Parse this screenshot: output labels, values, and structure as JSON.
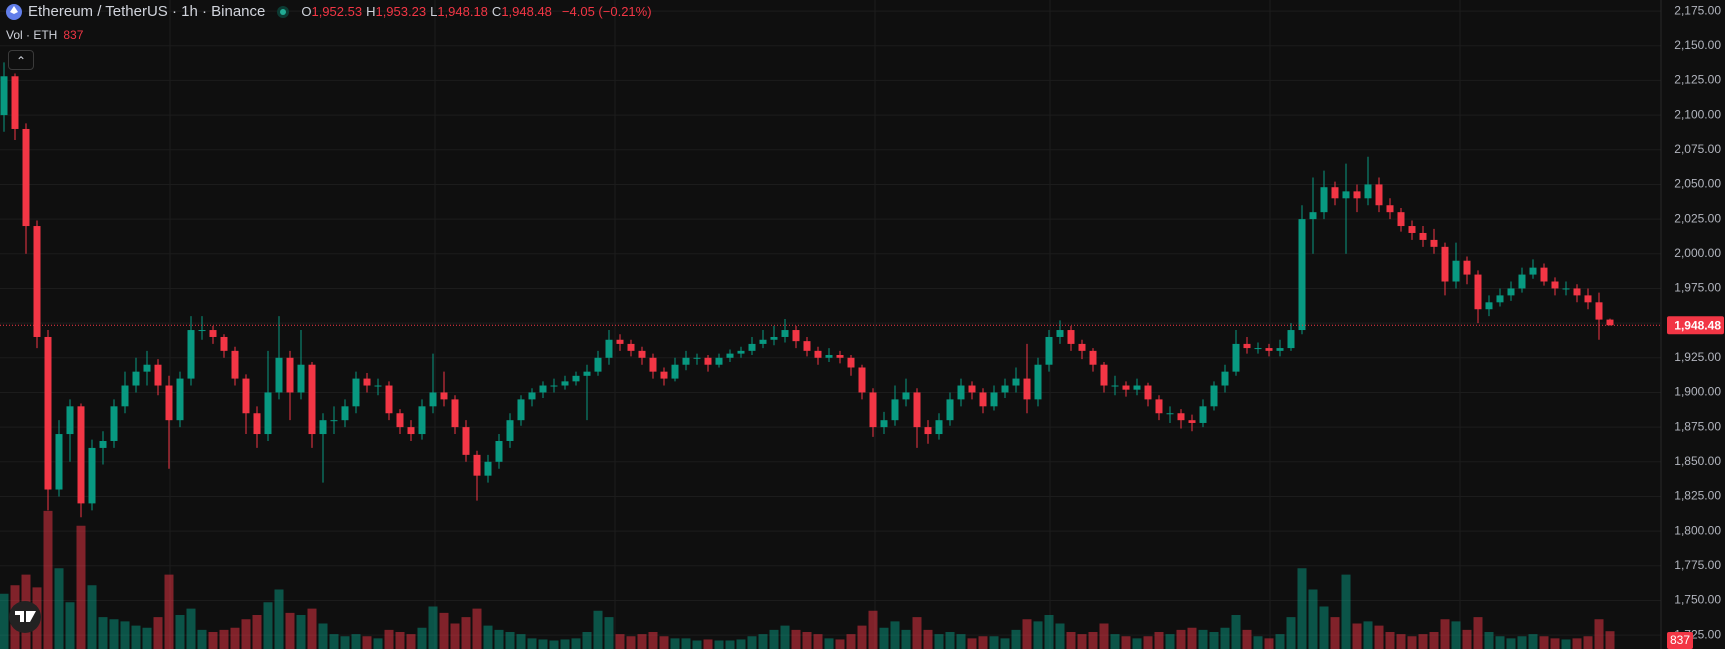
{
  "chart_data": {
    "type": "candlestick",
    "header": {
      "symbol": "Ethereum / TetherUS · 1h · Binance",
      "ohlc": [
        {
          "key": "O",
          "value": "1,952.53"
        },
        {
          "key": "H",
          "value": "1,953.23"
        },
        {
          "key": "L",
          "value": "1,948.18"
        },
        {
          "key": "C",
          "value": "1,948.48"
        }
      ],
      "change": "−4.05 (−0.21%)",
      "volume_title": "Vol · ETH"
    },
    "up_color": "#089981",
    "down_color": "#f23645",
    "ylim": [
      1715,
      2183
    ],
    "yticks": [
      {
        "value": 1725,
        "label": "1,725.00"
      },
      {
        "value": 1750,
        "label": "1,750.00"
      },
      {
        "value": 1775,
        "label": "1,775.00"
      },
      {
        "value": 1800,
        "label": "1,800.00"
      },
      {
        "value": 1825,
        "label": "1,825.00"
      },
      {
        "value": 1850,
        "label": "1,850.00"
      },
      {
        "value": 1875,
        "label": "1,875.00"
      },
      {
        "value": 1900,
        "label": "1,900.00"
      },
      {
        "value": 1925,
        "label": "1,925.00"
      },
      {
        "value": 1950,
        "label": "1,950.00"
      },
      {
        "value": 1975,
        "label": "1,975.00"
      },
      {
        "value": 2000,
        "label": "2,000.00"
      },
      {
        "value": 2025,
        "label": "2,025.00"
      },
      {
        "value": 2050,
        "label": "2,050.00"
      },
      {
        "value": 2075,
        "label": "2,075.00"
      },
      {
        "value": 2100,
        "label": "2,100.00"
      },
      {
        "value": 2125,
        "label": "2,125.00"
      },
      {
        "value": 2150,
        "label": "2,150.00"
      },
      {
        "value": 2175,
        "label": "2,175.00"
      }
    ],
    "grid": true,
    "volume_ylim": [
      0,
      8000
    ],
    "last_price": {
      "value": 1948.48,
      "label": "1,948.48"
    },
    "candles": [
      [
        2100,
        2138,
        2088,
        2128,
        2600
      ],
      [
        2128,
        2130,
        2082,
        2090,
        3000
      ],
      [
        2090,
        2094,
        2000,
        2020,
        3500
      ],
      [
        2020,
        2024,
        1932,
        1940,
        2900
      ],
      [
        1940,
        1945,
        1815,
        1830,
        6500
      ],
      [
        1830,
        1880,
        1825,
        1870,
        3800
      ],
      [
        1870,
        1895,
        1850,
        1890,
        2200
      ],
      [
        1890,
        1892,
        1810,
        1820,
        5800
      ],
      [
        1820,
        1866,
        1815,
        1860,
        3000
      ],
      [
        1860,
        1872,
        1848,
        1865,
        1500
      ],
      [
        1865,
        1895,
        1860,
        1890,
        1400
      ],
      [
        1890,
        1915,
        1885,
        1905,
        1300
      ],
      [
        1905,
        1925,
        1900,
        1915,
        1100
      ],
      [
        1915,
        1930,
        1905,
        1920,
        1000
      ],
      [
        1920,
        1924,
        1898,
        1905,
        1500
      ],
      [
        1905,
        1912,
        1845,
        1880,
        3500
      ],
      [
        1880,
        1915,
        1875,
        1910,
        1600
      ],
      [
        1910,
        1955,
        1905,
        1945,
        1900
      ],
      [
        1945,
        1955,
        1938,
        1945,
        900
      ],
      [
        1945,
        1948,
        1935,
        1940,
        800
      ],
      [
        1940,
        1942,
        1925,
        1930,
        900
      ],
      [
        1930,
        1933,
        1905,
        1910,
        1000
      ],
      [
        1910,
        1913,
        1870,
        1885,
        1400
      ],
      [
        1885,
        1890,
        1860,
        1870,
        1600
      ],
      [
        1870,
        1930,
        1865,
        1900,
        2200
      ],
      [
        1900,
        1955,
        1895,
        1925,
        2800
      ],
      [
        1925,
        1930,
        1880,
        1900,
        1700
      ],
      [
        1900,
        1945,
        1895,
        1920,
        1600
      ],
      [
        1920,
        1922,
        1860,
        1870,
        1900
      ],
      [
        1870,
        1885,
        1835,
        1880,
        1200
      ],
      [
        1880,
        1890,
        1870,
        1880,
        700
      ],
      [
        1880,
        1895,
        1875,
        1890,
        600
      ],
      [
        1890,
        1915,
        1885,
        1910,
        700
      ],
      [
        1910,
        1914,
        1900,
        1905,
        600
      ],
      [
        1905,
        1910,
        1898,
        1905,
        500
      ],
      [
        1905,
        1908,
        1880,
        1885,
        900
      ],
      [
        1885,
        1888,
        1870,
        1875,
        800
      ],
      [
        1875,
        1880,
        1865,
        1870,
        700
      ],
      [
        1870,
        1895,
        1866,
        1890,
        1000
      ],
      [
        1890,
        1928,
        1885,
        1900,
        2000
      ],
      [
        1900,
        1915,
        1890,
        1895,
        1700
      ],
      [
        1895,
        1898,
        1870,
        1875,
        1200
      ],
      [
        1875,
        1880,
        1850,
        1855,
        1500
      ],
      [
        1855,
        1858,
        1822,
        1840,
        1900
      ],
      [
        1840,
        1855,
        1835,
        1850,
        1100
      ],
      [
        1850,
        1870,
        1845,
        1865,
        900
      ],
      [
        1865,
        1885,
        1860,
        1880,
        800
      ],
      [
        1880,
        1898,
        1876,
        1895,
        700
      ],
      [
        1895,
        1903,
        1890,
        1900,
        500
      ],
      [
        1900,
        1908,
        1896,
        1905,
        450
      ],
      [
        1905,
        1910,
        1900,
        1905,
        400
      ],
      [
        1905,
        1912,
        1902,
        1908,
        450
      ],
      [
        1908,
        1915,
        1905,
        1912,
        500
      ],
      [
        1912,
        1920,
        1880,
        1915,
        800
      ],
      [
        1915,
        1930,
        1912,
        1925,
        1800
      ],
      [
        1925,
        1945,
        1920,
        1938,
        1500
      ],
      [
        1938,
        1942,
        1930,
        1935,
        700
      ],
      [
        1935,
        1938,
        1926,
        1930,
        600
      ],
      [
        1930,
        1933,
        1920,
        1925,
        700
      ],
      [
        1925,
        1928,
        1910,
        1915,
        800
      ],
      [
        1915,
        1918,
        1905,
        1910,
        600
      ],
      [
        1910,
        1925,
        1908,
        1920,
        500
      ],
      [
        1920,
        1930,
        1916,
        1925,
        500
      ],
      [
        1925,
        1928,
        1920,
        1925,
        400
      ],
      [
        1925,
        1927,
        1915,
        1920,
        450
      ],
      [
        1920,
        1928,
        1918,
        1925,
        400
      ],
      [
        1925,
        1931,
        1922,
        1928,
        400
      ],
      [
        1928,
        1933,
        1925,
        1930,
        450
      ],
      [
        1930,
        1940,
        1927,
        1935,
        600
      ],
      [
        1935,
        1945,
        1932,
        1938,
        700
      ],
      [
        1938,
        1948,
        1934,
        1940,
        900
      ],
      [
        1940,
        1953,
        1936,
        1945,
        1100
      ],
      [
        1945,
        1948,
        1932,
        1937,
        900
      ],
      [
        1937,
        1940,
        1926,
        1930,
        800
      ],
      [
        1930,
        1933,
        1920,
        1925,
        700
      ],
      [
        1925,
        1932,
        1922,
        1927,
        500
      ],
      [
        1927,
        1930,
        1921,
        1925,
        450
      ],
      [
        1925,
        1927,
        1912,
        1918,
        700
      ],
      [
        1918,
        1920,
        1895,
        1900,
        1100
      ],
      [
        1900,
        1903,
        1868,
        1875,
        1800
      ],
      [
        1875,
        1886,
        1870,
        1880,
        1000
      ],
      [
        1880,
        1905,
        1876,
        1895,
        1300
      ],
      [
        1895,
        1910,
        1890,
        1900,
        900
      ],
      [
        1900,
        1903,
        1860,
        1875,
        1500
      ],
      [
        1875,
        1880,
        1863,
        1870,
        900
      ],
      [
        1870,
        1885,
        1866,
        1880,
        700
      ],
      [
        1880,
        1900,
        1876,
        1895,
        800
      ],
      [
        1895,
        1910,
        1890,
        1905,
        700
      ],
      [
        1905,
        1908,
        1895,
        1900,
        500
      ],
      [
        1900,
        1903,
        1885,
        1890,
        600
      ],
      [
        1890,
        1905,
        1887,
        1900,
        600
      ],
      [
        1900,
        1910,
        1896,
        1905,
        500
      ],
      [
        1905,
        1918,
        1900,
        1910,
        900
      ],
      [
        1910,
        1935,
        1885,
        1895,
        1400
      ],
      [
        1895,
        1925,
        1890,
        1920,
        1300
      ],
      [
        1920,
        1945,
        1915,
        1940,
        1600
      ],
      [
        1940,
        1952,
        1935,
        1945,
        1200
      ],
      [
        1945,
        1948,
        1930,
        1935,
        800
      ],
      [
        1935,
        1938,
        1924,
        1930,
        700
      ],
      [
        1930,
        1932,
        1915,
        1920,
        800
      ],
      [
        1920,
        1922,
        1900,
        1905,
        1200
      ],
      [
        1905,
        1912,
        1898,
        1905,
        700
      ],
      [
        1905,
        1908,
        1897,
        1902,
        600
      ],
      [
        1902,
        1910,
        1898,
        1905,
        500
      ],
      [
        1905,
        1907,
        1890,
        1895,
        600
      ],
      [
        1895,
        1898,
        1880,
        1885,
        800
      ],
      [
        1885,
        1890,
        1878,
        1885,
        700
      ],
      [
        1885,
        1888,
        1874,
        1880,
        900
      ],
      [
        1880,
        1884,
        1872,
        1878,
        1000
      ],
      [
        1878,
        1895,
        1875,
        1890,
        900
      ],
      [
        1890,
        1908,
        1887,
        1905,
        800
      ],
      [
        1905,
        1920,
        1900,
        1915,
        1000
      ],
      [
        1915,
        1945,
        1912,
        1935,
        1600
      ],
      [
        1935,
        1940,
        1928,
        1932,
        900
      ],
      [
        1932,
        1936,
        1928,
        1932,
        600
      ],
      [
        1932,
        1935,
        1926,
        1930,
        500
      ],
      [
        1930,
        1938,
        1926,
        1932,
        700
      ],
      [
        1932,
        1950,
        1930,
        1945,
        1500
      ],
      [
        1945,
        2035,
        1942,
        2025,
        3800
      ],
      [
        2025,
        2055,
        2000,
        2030,
        2800
      ],
      [
        2030,
        2060,
        2025,
        2048,
        2000
      ],
      [
        2048,
        2052,
        2035,
        2040,
        1500
      ],
      [
        2040,
        2065,
        2000,
        2045,
        3500
      ],
      [
        2045,
        2050,
        2030,
        2040,
        1200
      ],
      [
        2040,
        2070,
        2035,
        2050,
        1300
      ],
      [
        2050,
        2055,
        2030,
        2035,
        1100
      ],
      [
        2035,
        2040,
        2025,
        2030,
        800
      ],
      [
        2030,
        2033,
        2016,
        2020,
        700
      ],
      [
        2020,
        2024,
        2010,
        2015,
        600
      ],
      [
        2015,
        2020,
        2005,
        2010,
        700
      ],
      [
        2010,
        2018,
        2000,
        2005,
        800
      ],
      [
        2005,
        2008,
        1970,
        1980,
        1400
      ],
      [
        1980,
        2008,
        1975,
        1995,
        1300
      ],
      [
        1995,
        1998,
        1978,
        1985,
        900
      ],
      [
        1985,
        1988,
        1950,
        1960,
        1500
      ],
      [
        1960,
        1970,
        1955,
        1965,
        800
      ],
      [
        1965,
        1975,
        1962,
        1970,
        600
      ],
      [
        1970,
        1980,
        1966,
        1975,
        500
      ],
      [
        1975,
        1990,
        1972,
        1985,
        600
      ],
      [
        1985,
        1996,
        1982,
        1990,
        700
      ],
      [
        1990,
        1993,
        1977,
        1980,
        600
      ],
      [
        1980,
        1983,
        1970,
        1975,
        500
      ],
      [
        1975,
        1980,
        1970,
        1975,
        450
      ],
      [
        1975,
        1978,
        1965,
        1970,
        500
      ],
      [
        1970,
        1975,
        1960,
        1965,
        600
      ],
      [
        1965,
        1972,
        1938,
        1952.53,
        1400
      ],
      [
        1952.53,
        1953.23,
        1948.18,
        1948.48,
        837
      ]
    ]
  }
}
